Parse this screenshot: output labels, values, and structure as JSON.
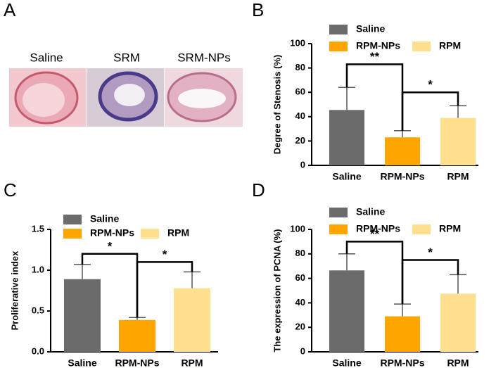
{
  "figure": {
    "panel_labels": [
      "A",
      "B",
      "C",
      "D"
    ],
    "images": [
      "Saline",
      "SRM",
      "SRM-NPs"
    ]
  },
  "chart_data": [
    {
      "type": "bar",
      "y_label": "Degree of Stenosis  (%)",
      "categories": [
        "Saline",
        "RPM-NPs",
        "RPM"
      ],
      "values": [
        45.5,
        23,
        39
      ],
      "errors": [
        18.5,
        5.5,
        10
      ],
      "colors": [
        "#6b6b6b",
        "#ffa500",
        "#ffe08f"
      ],
      "ylim": [
        0,
        100
      ],
      "yticks": [
        0,
        20,
        40,
        60,
        80,
        100
      ],
      "significance": [
        {
          "from": 0,
          "to": 1,
          "y": 83,
          "label": "**"
        },
        {
          "from": 1,
          "to": 2,
          "y": 60,
          "label": "*"
        }
      ]
    },
    {
      "type": "bar",
      "y_label": "Proliferative index",
      "categories": [
        "Saline",
        "RPM-NPs",
        "RPM"
      ],
      "values": [
        0.89,
        0.39,
        0.78
      ],
      "errors": [
        0.18,
        0.03,
        0.2
      ],
      "colors": [
        "#6b6b6b",
        "#ffa500",
        "#ffe08f"
      ],
      "ylim": [
        0,
        1.5
      ],
      "yticks": [
        {
          "value": 0,
          "label": "0.0"
        },
        0.5,
        {
          "value": 1,
          "label": "1.0"
        },
        1.5
      ],
      "significance": [
        {
          "from": 0,
          "to": 1,
          "y": 1.2,
          "label": "*"
        },
        {
          "from": 1,
          "to": 2,
          "y": 1.1,
          "label": "*"
        }
      ]
    },
    {
      "type": "bar",
      "y_label": "The expression of PCNA (%)",
      "categories": [
        "Saline",
        "RPM-NPs",
        "RPM"
      ],
      "values": [
        66.5,
        29,
        47.5
      ],
      "errors": [
        13.5,
        10,
        15.5
      ],
      "colors": [
        "#6b6b6b",
        "#ffa500",
        "#ffe08f"
      ],
      "ylim": [
        0,
        100
      ],
      "yticks": [
        0,
        20,
        40,
        60,
        80,
        100
      ],
      "significance": [
        {
          "from": 0,
          "to": 1,
          "y": 90,
          "label": "**"
        },
        {
          "from": 1,
          "to": 2,
          "y": 75,
          "label": "*"
        }
      ]
    }
  ]
}
